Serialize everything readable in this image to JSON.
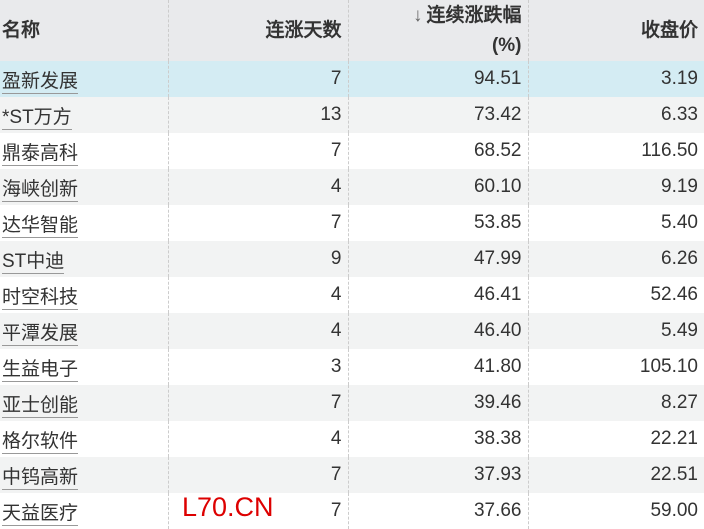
{
  "headers": {
    "name": "名称",
    "days": "连涨天数",
    "sort_arrow": "↓",
    "change": "连续涨跌幅",
    "change_unit": "(%)",
    "price": "收盘价"
  },
  "rows": [
    {
      "name": "盈新发展",
      "days": "7",
      "change": "94.51",
      "price": "3.19"
    },
    {
      "name": "*ST万方",
      "days": "13",
      "change": "73.42",
      "price": "6.33"
    },
    {
      "name": "鼎泰高科",
      "days": "7",
      "change": "68.52",
      "price": "116.50"
    },
    {
      "name": "海峡创新",
      "days": "4",
      "change": "60.10",
      "price": "9.19"
    },
    {
      "name": "达华智能",
      "days": "7",
      "change": "53.85",
      "price": "5.40"
    },
    {
      "name": "ST中迪",
      "days": "9",
      "change": "47.99",
      "price": "6.26"
    },
    {
      "name": "时空科技",
      "days": "4",
      "change": "46.41",
      "price": "52.46"
    },
    {
      "name": "平潭发展",
      "days": "4",
      "change": "46.40",
      "price": "5.49"
    },
    {
      "name": "生益电子",
      "days": "3",
      "change": "41.80",
      "price": "105.10"
    },
    {
      "name": "亚士创能",
      "days": "7",
      "change": "39.46",
      "price": "8.27"
    },
    {
      "name": "格尔软件",
      "days": "4",
      "change": "38.38",
      "price": "22.21"
    },
    {
      "name": "中钨高新",
      "days": "7",
      "change": "37.93",
      "price": "22.51"
    },
    {
      "name": "天益医疗",
      "days": "7",
      "change": "37.66",
      "price": "59.00"
    }
  ],
  "watermark": "L70.CN",
  "colors": {
    "header_bg": "#e9eaec",
    "highlight_row": "#d4ecf3",
    "alt_row": "#f2f3f3",
    "watermark": "#dd0000"
  }
}
